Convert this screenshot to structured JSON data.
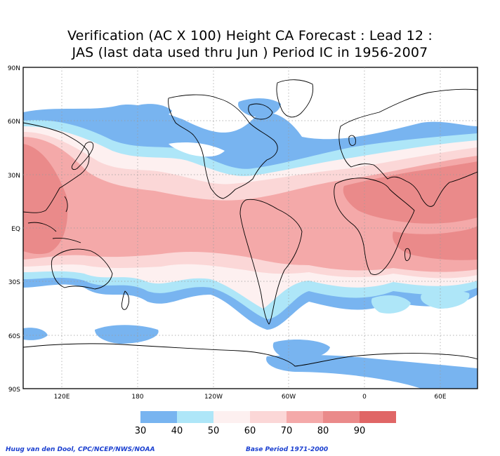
{
  "title_line1": "Verification (AC X 100) Height CA Forecast : Lead 12 :",
  "title_line2": "JAS (last data used thru Jun ) Period IC in 1956-2007",
  "lat_labels": [
    "90N",
    "60N",
    "30N",
    "EQ",
    "30S",
    "60S",
    "90S"
  ],
  "lon_labels": [
    "120E",
    "180",
    "120W",
    "60W",
    "0",
    "60E"
  ],
  "legend": {
    "labels": [
      "30",
      "40",
      "50",
      "60",
      "70",
      "80",
      "90"
    ],
    "colors": [
      "#78b4f0",
      "#aee6f8",
      "#fdf0f0",
      "#fbd7d7",
      "#f4a9a9",
      "#ea8a8a",
      "#e06666"
    ]
  },
  "credit_left": "Huug van den Dool, CPC/NCEP/NWS/NOAA",
  "credit_right": "Base Period 1971-2000"
}
